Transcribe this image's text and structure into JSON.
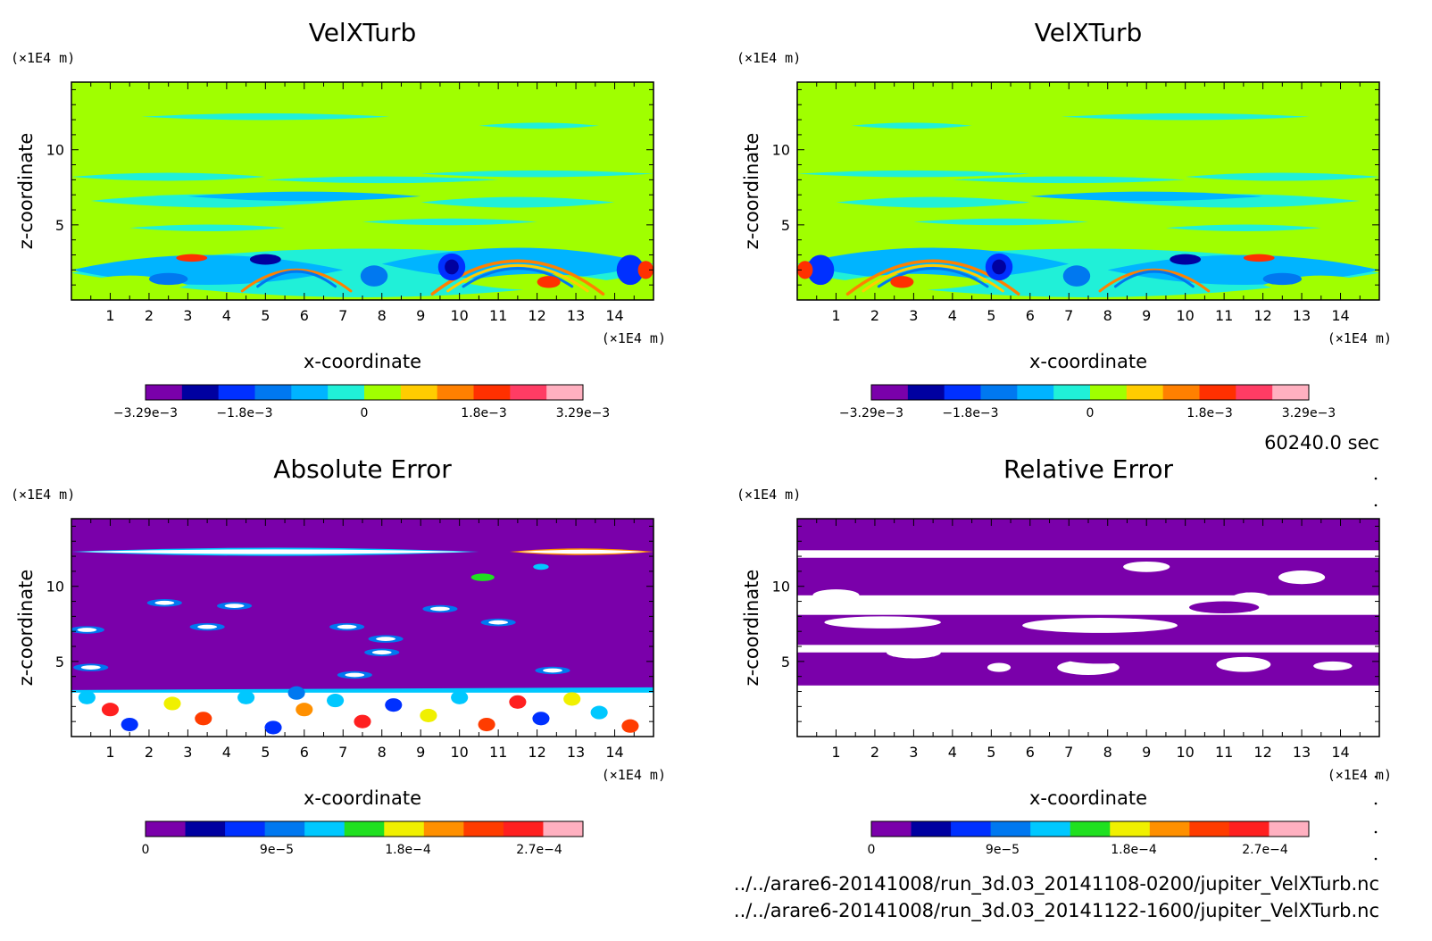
{
  "time_label": "60240.0 sec",
  "files": [
    "../../arare6-20141008/run_3d.03_20141108-0200/jupiter_VelXTurb.nc",
    "../../arare6-20141008/run_3d.03_20141122-1600/jupiter_VelXTurb.nc"
  ],
  "colors": {
    "turb_scale": [
      "#7a00aa",
      "#0000a0",
      "#0030ff",
      "#0078f0",
      "#00b4ff",
      "#20f0d8",
      "#a0ff00",
      "#ffcc00",
      "#ff8000",
      "#ff3000",
      "#ff3c64",
      "#ffb0c0"
    ],
    "error_scale": [
      "#7a00aa",
      "#0000a0",
      "#0030ff",
      "#0078f0",
      "#00c8ff",
      "#20e020",
      "#f0f000",
      "#ff9000",
      "#ff3c00",
      "#ff2020",
      "#ffb0c0"
    ],
    "white": "#ffffff"
  },
  "chart_data": [
    {
      "type": "heatmap",
      "title": "VelXTurb",
      "xlabel": "x-coordinate",
      "ylabel": "z-coordinate",
      "x_unit": "(×1E4 m)",
      "y_unit": "(×1E4 m)",
      "xlim": [
        0,
        15
      ],
      "ylim": [
        0,
        14.5
      ],
      "x_ticks": [
        "1",
        "2",
        "3",
        "4",
        "5",
        "6",
        "7",
        "8",
        "9",
        "10",
        "11",
        "12",
        "13",
        "14"
      ],
      "y_ticks": [
        "5",
        "10"
      ],
      "colorbar_ticks": [
        "−3.29e−3",
        "−1.8e−3",
        "0",
        "1.8e−3",
        "3.29e−3"
      ],
      "colorbar_range": [
        -0.00329,
        0.00329
      ],
      "background_value": 0
    },
    {
      "type": "heatmap",
      "title": "VelXTurb",
      "xlabel": "x-coordinate",
      "ylabel": "z-coordinate",
      "x_unit": "(×1E4 m)",
      "y_unit": "(×1E4 m)",
      "xlim": [
        0,
        15
      ],
      "ylim": [
        0,
        14.5
      ],
      "x_ticks": [
        "1",
        "2",
        "3",
        "4",
        "5",
        "6",
        "7",
        "8",
        "9",
        "10",
        "11",
        "12",
        "13",
        "14"
      ],
      "y_ticks": [
        "5",
        "10"
      ],
      "colorbar_ticks": [
        "−3.29e−3",
        "−1.8e−3",
        "0",
        "1.8e−3",
        "3.29e−3"
      ],
      "colorbar_range": [
        -0.00329,
        0.00329
      ],
      "background_value": 0
    },
    {
      "type": "heatmap",
      "title": "Absolute Error",
      "xlabel": "x-coordinate",
      "ylabel": "z-coordinate",
      "x_unit": "(×1E4 m)",
      "y_unit": "(×1E4 m)",
      "xlim": [
        0,
        15
      ],
      "ylim": [
        0,
        14.5
      ],
      "x_ticks": [
        "1",
        "2",
        "3",
        "4",
        "5",
        "6",
        "7",
        "8",
        "9",
        "10",
        "11",
        "12",
        "13",
        "14"
      ],
      "y_ticks": [
        "5",
        "10"
      ],
      "colorbar_ticks": [
        "0",
        "9e−5",
        "1.8e−4",
        "2.7e−4"
      ],
      "colorbar_range": [
        0,
        0.0003
      ],
      "background_value": 0
    },
    {
      "type": "heatmap",
      "title": "Relative Error",
      "xlabel": "x-coordinate",
      "ylabel": "z-coordinate",
      "x_unit": "(×1E4 m)",
      "y_unit": "(×1E4 m)",
      "xlim": [
        0,
        15
      ],
      "ylim": [
        0,
        14.5
      ],
      "x_ticks": [
        "1",
        "2",
        "3",
        "4",
        "5",
        "6",
        "7",
        "8",
        "9",
        "10",
        "11",
        "12",
        "13",
        "14"
      ],
      "y_ticks": [
        "5",
        "10"
      ],
      "colorbar_ticks": [
        "0",
        "9e−5",
        "1.8e−4",
        "2.7e−4"
      ],
      "colorbar_range": [
        0,
        0.0003
      ],
      "background_value": 0
    }
  ]
}
